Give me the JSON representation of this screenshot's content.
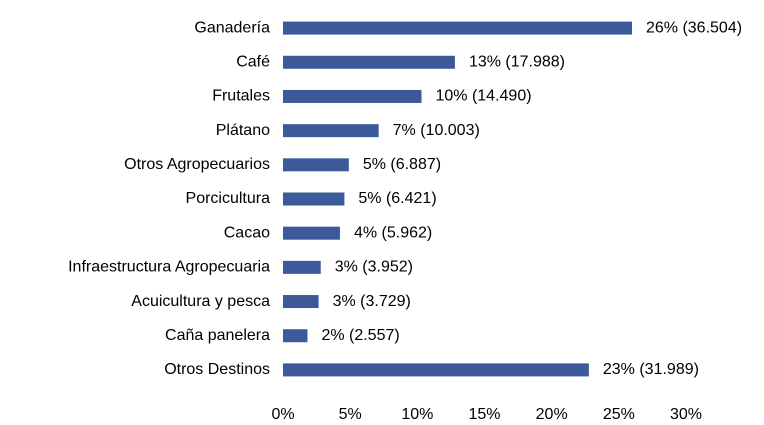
{
  "chart_data": {
    "type": "barh",
    "categories": [
      "Ganadería",
      "Café",
      "Frutales",
      "Plátano",
      "Otros Agropecuarios",
      "Porcicultura",
      "Cacao",
      "Infraestructura Agropecuaria",
      "Acuicultura y pesca",
      "Caña panelera",
      "Otros Destinos"
    ],
    "values": [
      25.98,
      12.8,
      10.31,
      7.12,
      4.9,
      4.57,
      4.24,
      2.81,
      2.65,
      1.82,
      22.77
    ],
    "value_labels": [
      "26% (36.504)",
      "13% (17.988)",
      "10% (14.490)",
      "7% (10.003)",
      "5% (6.887)",
      "5% (6.421)",
      "4% (5.962)",
      "3% (3.952)",
      "3% (3.729)",
      "2% (2.557)",
      "23% (31.989)"
    ],
    "color": "#3c5a9a",
    "xlim": [
      0,
      30
    ],
    "xticks": [
      {
        "value": 0,
        "label": "0%"
      },
      {
        "value": 5,
        "label": "5%"
      },
      {
        "value": 10,
        "label": "10%"
      },
      {
        "value": 15,
        "label": "15%"
      },
      {
        "value": 20,
        "label": "20%"
      },
      {
        "value": 25,
        "label": "25%"
      },
      {
        "value": 30,
        "label": "30%"
      }
    ],
    "grid": false
  }
}
